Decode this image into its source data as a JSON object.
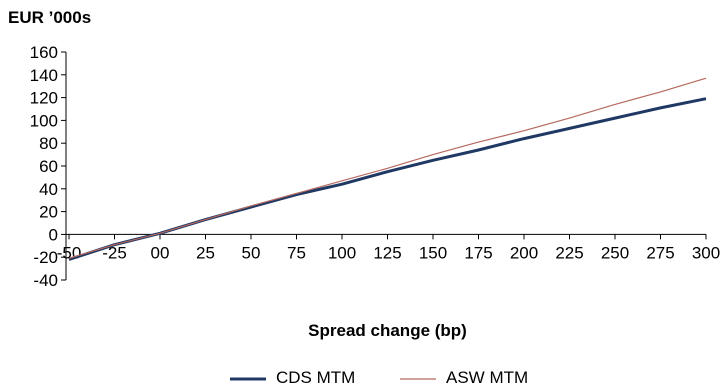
{
  "chart_data": {
    "type": "line",
    "unit_label": "EUR ’000s",
    "xlabel": "Spread change (bp)",
    "x": [
      -50,
      -25,
      0,
      25,
      50,
      75,
      100,
      125,
      150,
      175,
      200,
      225,
      250,
      275,
      300
    ],
    "x_tick_labels": [
      "-50",
      "-25",
      "00",
      "25",
      "50",
      "75",
      "100",
      "125",
      "150",
      "175",
      "200",
      "225",
      "250",
      "275",
      "300"
    ],
    "y_ticks": [
      -40,
      -20,
      0,
      20,
      40,
      60,
      80,
      100,
      120,
      140,
      160
    ],
    "ylim": [
      -40,
      160
    ],
    "grid": false,
    "legend_position": "bottom",
    "series": [
      {
        "name": "CDS MTM",
        "color": "#1f3864",
        "values": [
          -22,
          -9,
          1,
          13,
          24,
          35,
          44,
          55,
          65,
          74,
          84,
          93,
          102,
          111,
          119
        ]
      },
      {
        "name": "ASW MTM",
        "color": "#b5695e",
        "values": [
          -21,
          -9,
          1,
          13,
          25,
          36,
          47,
          58,
          70,
          81,
          91,
          102,
          114,
          125,
          137
        ]
      }
    ]
  }
}
